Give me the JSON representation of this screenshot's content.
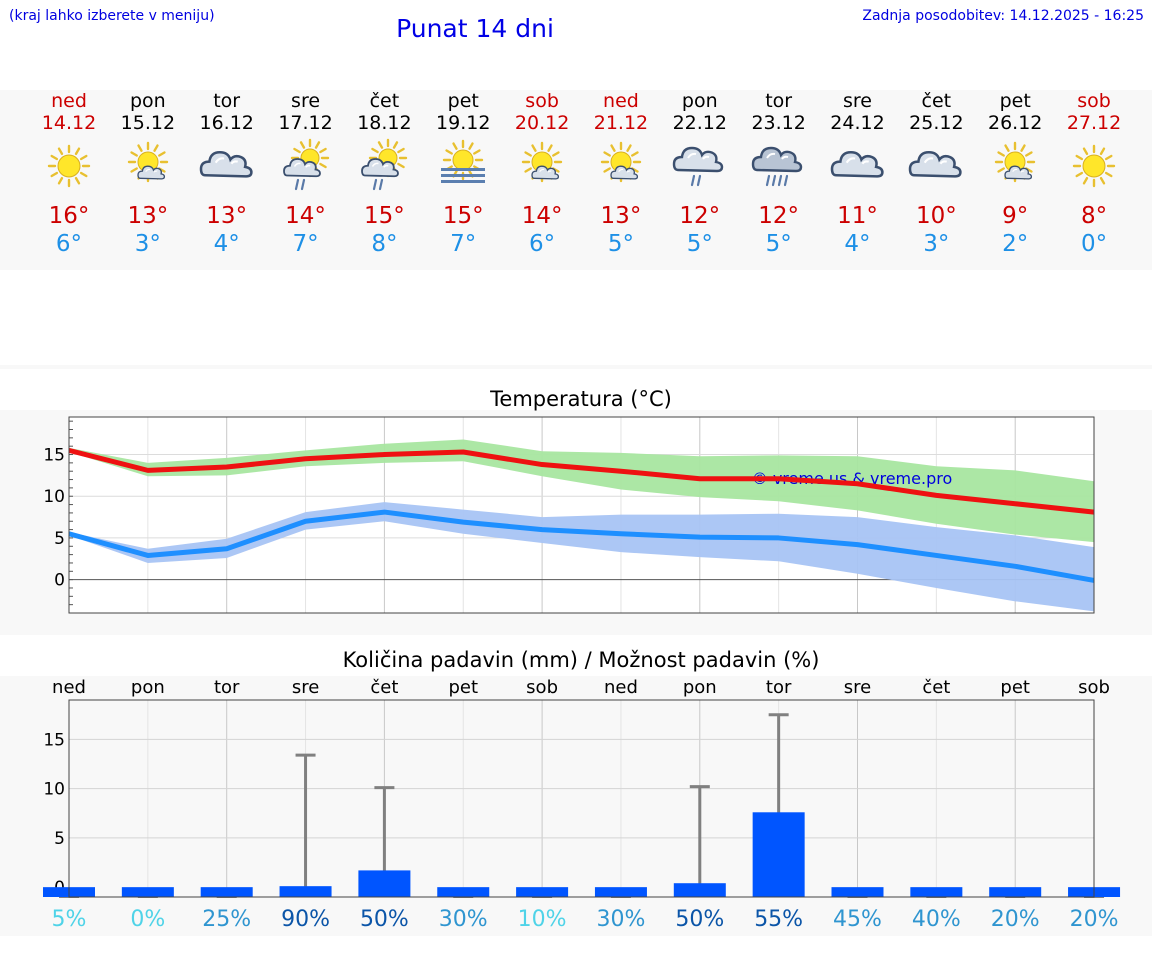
{
  "header": {
    "hint": "(kraj lahko izberete v meniju)",
    "title": "Punat 14 dni",
    "updated": "Zadnja posodobitev: 14.12.2025 - 16:25"
  },
  "days": [
    {
      "name": "ned",
      "date": "14.12",
      "weekend": true,
      "icon": "sunny-icon",
      "max": "16°",
      "min": "6°"
    },
    {
      "name": "pon",
      "date": "15.12",
      "weekend": false,
      "icon": "sun-cloud-icon",
      "max": "13°",
      "min": "3°"
    },
    {
      "name": "tor",
      "date": "16.12",
      "weekend": false,
      "icon": "cloudy-icon",
      "max": "13°",
      "min": "4°"
    },
    {
      "name": "sre",
      "date": "17.12",
      "weekend": false,
      "icon": "sun-cloud-rain-icon",
      "max": "14°",
      "min": "7°"
    },
    {
      "name": "čet",
      "date": "18.12",
      "weekend": false,
      "icon": "sun-cloud-rain-icon",
      "max": "15°",
      "min": "8°"
    },
    {
      "name": "pet",
      "date": "19.12",
      "weekend": false,
      "icon": "sun-fog-icon",
      "max": "15°",
      "min": "7°"
    },
    {
      "name": "sob",
      "date": "20.12",
      "weekend": true,
      "icon": "sun-cloud-icon",
      "max": "14°",
      "min": "6°"
    },
    {
      "name": "ned",
      "date": "21.12",
      "weekend": true,
      "icon": "sun-cloud-icon",
      "max": "13°",
      "min": "5°"
    },
    {
      "name": "pon",
      "date": "22.12",
      "weekend": false,
      "icon": "cloud-rain-icon",
      "max": "12°",
      "min": "5°"
    },
    {
      "name": "tor",
      "date": "23.12",
      "weekend": false,
      "icon": "cloud-heavy-rain-icon",
      "max": "12°",
      "min": "5°"
    },
    {
      "name": "sre",
      "date": "24.12",
      "weekend": false,
      "icon": "cloudy-icon",
      "max": "11°",
      "min": "4°"
    },
    {
      "name": "čet",
      "date": "25.12",
      "weekend": false,
      "icon": "cloudy-icon",
      "max": "10°",
      "min": "3°"
    },
    {
      "name": "pet",
      "date": "26.12",
      "weekend": false,
      "icon": "sun-cloud-icon",
      "max": "9°",
      "min": "2°"
    },
    {
      "name": "sob",
      "date": "27.12",
      "weekend": true,
      "icon": "sunny-icon",
      "max": "8°",
      "min": "0°"
    }
  ],
  "colors": {
    "weekend": "#cc0000",
    "weekday": "#000000",
    "max_temp": "#cc0000",
    "min_temp": "#1e90e6",
    "max_line": "#ee1111",
    "min_line": "#1e8fff",
    "max_band": "#a8e6a0",
    "min_band": "#a8c4f4",
    "bar": "#0055ff",
    "errbar": "#808080",
    "watermark": "#0000dd"
  },
  "chart_data": [
    {
      "type": "line",
      "title": "Temperatura (°C)",
      "watermark": "© vreme.us & vreme.pro",
      "x": [
        0,
        1,
        2,
        3,
        4,
        5,
        6,
        7,
        8,
        9,
        10,
        11,
        12,
        13
      ],
      "ylim": [
        -4,
        19.5
      ],
      "yticks": [
        "0",
        "5",
        "10",
        "15"
      ],
      "series": [
        {
          "name": "max",
          "values": [
            15.5,
            13.1,
            13.5,
            14.5,
            15.0,
            15.3,
            13.8,
            13.0,
            12.1,
            12.1,
            11.5,
            10.1,
            9.1,
            8.1
          ],
          "band_low": [
            15.3,
            12.4,
            12.5,
            13.6,
            14.0,
            14.2,
            12.4,
            10.8,
            9.9,
            9.4,
            8.3,
            6.7,
            5.4,
            4.5
          ],
          "band_high": [
            15.8,
            14.0,
            14.6,
            15.5,
            16.3,
            16.8,
            15.4,
            15.2,
            14.8,
            14.9,
            14.8,
            13.6,
            13.1,
            11.8
          ]
        },
        {
          "name": "min",
          "values": [
            5.5,
            2.9,
            3.7,
            7.0,
            8.1,
            6.9,
            6.0,
            5.5,
            5.1,
            5.0,
            4.2,
            2.9,
            1.6,
            -0.1
          ],
          "band_low": [
            5.3,
            2.0,
            2.6,
            6.0,
            7.0,
            5.5,
            4.4,
            3.3,
            2.7,
            2.2,
            0.7,
            -1.0,
            -2.6,
            -3.8
          ],
          "band_high": [
            5.7,
            3.7,
            4.9,
            8.1,
            9.3,
            8.4,
            7.5,
            7.8,
            7.8,
            7.9,
            7.5,
            6.3,
            5.3,
            3.9
          ]
        }
      ]
    },
    {
      "type": "bar",
      "title": "Količina padavin (mm) / Možnost padavin (%)",
      "categories": [
        "ned",
        "pon",
        "tor",
        "sre",
        "čet",
        "pet",
        "sob",
        "ned",
        "pon",
        "tor",
        "sre",
        "čet",
        "pet",
        "sob"
      ],
      "ylim": [
        -1,
        19
      ],
      "yticks": [
        "0",
        "5",
        "10",
        "15"
      ],
      "values": [
        0,
        0,
        0,
        0.1,
        1.7,
        0,
        0,
        0,
        0.4,
        7.6,
        0,
        0,
        0,
        0
      ],
      "error_max": [
        0,
        0,
        0,
        13.4,
        10.1,
        0,
        0,
        0,
        10.2,
        17.5,
        0,
        0,
        0,
        0
      ],
      "probabilities": [
        "5%",
        "0%",
        "25%",
        "90%",
        "50%",
        "30%",
        "10%",
        "30%",
        "50%",
        "55%",
        "45%",
        "40%",
        "20%",
        "20%"
      ],
      "probability_values": [
        5,
        0,
        25,
        90,
        50,
        30,
        10,
        30,
        50,
        55,
        45,
        40,
        20,
        20
      ]
    }
  ]
}
